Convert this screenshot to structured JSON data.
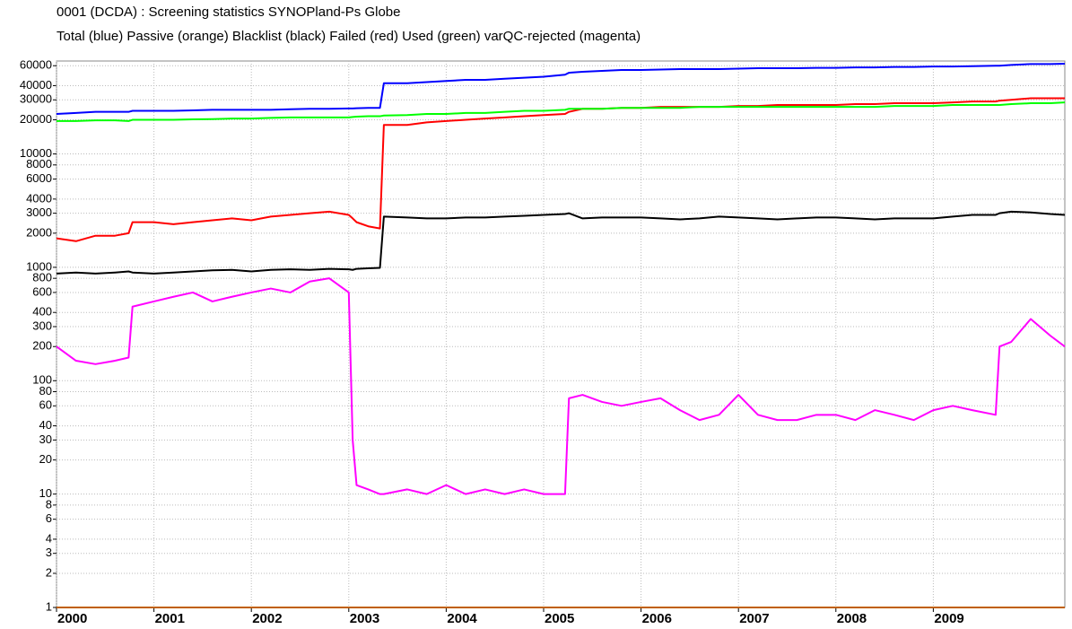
{
  "chart_data": {
    "type": "line",
    "title": "0001 (DCDA)  : Screening statistics  SYNOPland-Ps  Globe",
    "subtitle": "Total (blue) Passive (orange) Blacklist (black) Failed (red) Used (green) varQC-rejected (magenta)",
    "log_scale": true,
    "grid": true,
    "xlim": [
      2000,
      2010.35
    ],
    "xticks": [
      2000,
      2001,
      2002,
      2003,
      2004,
      2005,
      2006,
      2007,
      2008,
      2009
    ],
    "ylim": [
      1,
      66000
    ],
    "yticks": [
      1,
      2,
      3,
      4,
      6,
      8,
      10,
      20,
      30,
      40,
      60,
      80,
      100,
      200,
      300,
      400,
      600,
      800,
      1000,
      2000,
      3000,
      4000,
      6000,
      8000,
      10000,
      20000,
      30000,
      40000,
      60000
    ],
    "x": [
      2000.0,
      2000.2,
      2000.4,
      2000.6,
      2000.74,
      2000.78,
      2001.0,
      2001.2,
      2001.4,
      2001.6,
      2001.8,
      2002.0,
      2002.2,
      2002.4,
      2002.6,
      2002.8,
      2003.0,
      2003.04,
      2003.08,
      2003.2,
      2003.32,
      2003.36,
      2003.6,
      2003.8,
      2004.0,
      2004.2,
      2004.4,
      2004.6,
      2004.8,
      2005.0,
      2005.22,
      2005.26,
      2005.4,
      2005.6,
      2005.8,
      2006.0,
      2006.2,
      2006.4,
      2006.6,
      2006.8,
      2007.0,
      2007.2,
      2007.4,
      2007.6,
      2007.8,
      2008.0,
      2008.2,
      2008.4,
      2008.6,
      2008.8,
      2009.0,
      2009.2,
      2009.4,
      2009.64,
      2009.68,
      2009.8,
      2010.0,
      2010.2,
      2010.35
    ],
    "series": [
      {
        "name": "Total",
        "color": "#0000ff",
        "values": [
          22500,
          23000,
          23500,
          23500,
          23500,
          24000,
          24000,
          24000,
          24200,
          24500,
          24500,
          24500,
          24500,
          24800,
          25000,
          25000,
          25200,
          25200,
          25300,
          25500,
          25500,
          42000,
          42000,
          43000,
          44000,
          45000,
          45000,
          46000,
          47000,
          48000,
          50000,
          52000,
          53000,
          54000,
          55000,
          55000,
          55500,
          56000,
          56000,
          56000,
          56500,
          57000,
          57000,
          57000,
          57500,
          57500,
          58000,
          58000,
          58500,
          58500,
          59000,
          59000,
          59500,
          60000,
          60000,
          61000,
          62000,
          62000,
          62500
        ]
      },
      {
        "name": "Passive",
        "color": "#c06000",
        "values": [
          1,
          1,
          1,
          1,
          1,
          1,
          1,
          1,
          1,
          1,
          1,
          1,
          1,
          1,
          1,
          1,
          1,
          1,
          1,
          1,
          1,
          1,
          1,
          1,
          1,
          1,
          1,
          1,
          1,
          1,
          1,
          1,
          1,
          1,
          1,
          1,
          1,
          1,
          1,
          1,
          1,
          1,
          1,
          1,
          1,
          1,
          1,
          1,
          1,
          1,
          1,
          1,
          1,
          1,
          1,
          1,
          1,
          1,
          1
        ]
      },
      {
        "name": "Blacklist",
        "color": "#000000",
        "values": [
          880,
          900,
          880,
          900,
          920,
          900,
          880,
          900,
          920,
          940,
          950,
          920,
          950,
          960,
          950,
          970,
          960,
          950,
          970,
          980,
          990,
          2800,
          2750,
          2700,
          2700,
          2750,
          2750,
          2800,
          2850,
          2900,
          2950,
          3000,
          2700,
          2750,
          2750,
          2750,
          2700,
          2650,
          2700,
          2800,
          2750,
          2700,
          2650,
          2700,
          2750,
          2750,
          2700,
          2650,
          2700,
          2700,
          2700,
          2800,
          2900,
          2900,
          3000,
          3100,
          3050,
          2950,
          2900
        ]
      },
      {
        "name": "Failed",
        "color": "#ff0000",
        "values": [
          1800,
          1700,
          1900,
          1900,
          2000,
          2500,
          2500,
          2400,
          2500,
          2600,
          2700,
          2600,
          2800,
          2900,
          3000,
          3100,
          2900,
          2700,
          2500,
          2300,
          2200,
          18000,
          18000,
          19000,
          19500,
          20000,
          20500,
          21000,
          21500,
          22000,
          22500,
          23500,
          25000,
          25000,
          25500,
          25500,
          26000,
          26000,
          26000,
          26000,
          26500,
          26500,
          27000,
          27000,
          27000,
          27000,
          27500,
          27500,
          28000,
          28000,
          28000,
          28500,
          29000,
          29000,
          29500,
          30000,
          31000,
          31000,
          31000
        ]
      },
      {
        "name": "Used",
        "color": "#00ff00",
        "values": [
          19500,
          19500,
          19800,
          19800,
          19500,
          20000,
          20000,
          20000,
          20200,
          20300,
          20500,
          20500,
          20800,
          21000,
          21000,
          21000,
          21000,
          21200,
          21300,
          21500,
          21500,
          21800,
          22000,
          22500,
          22500,
          23000,
          23000,
          23500,
          24000,
          24000,
          24500,
          25000,
          25000,
          25000,
          25500,
          25500,
          25500,
          25500,
          26000,
          26000,
          26000,
          26000,
          26000,
          26000,
          26000,
          26000,
          26000,
          26000,
          26500,
          26500,
          26500,
          27000,
          27000,
          27000,
          27000,
          27500,
          28000,
          28000,
          28500
        ]
      },
      {
        "name": "varQC-rejected",
        "color": "#ff00ff",
        "values": [
          200,
          150,
          140,
          150,
          160,
          450,
          500,
          550,
          600,
          500,
          550,
          600,
          650,
          600,
          750,
          800,
          600,
          30,
          12,
          11,
          10,
          10,
          11,
          10,
          12,
          10,
          11,
          10,
          11,
          10,
          10,
          70,
          75,
          65,
          60,
          65,
          70,
          55,
          45,
          50,
          75,
          50,
          45,
          45,
          50,
          50,
          45,
          55,
          50,
          45,
          55,
          60,
          55,
          50,
          200,
          220,
          350,
          250,
          200
        ]
      }
    ]
  }
}
